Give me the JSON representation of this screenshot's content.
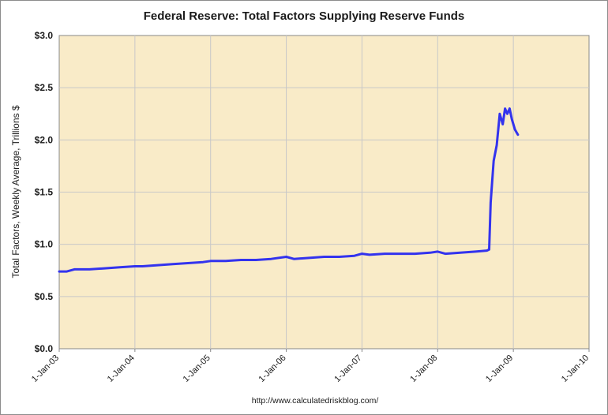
{
  "chart_data": {
    "type": "line",
    "title": "Federal Reserve: Total Factors Supplying Reserve Funds",
    "ylabel": "Total Factors, Weekly Average, Trillions $",
    "xlabel": "",
    "footer": "http://www.calculatedriskblog.com/",
    "ylim": [
      0,
      3.0
    ],
    "xlim": [
      2003.0,
      2010.0
    ],
    "grid": true,
    "legend": "none",
    "colors": {
      "plot_background": "#f9ebc8",
      "grid": "#c8c8c8",
      "line": "#3333ee"
    },
    "y_ticks": [
      {
        "value": 0.0,
        "label": "$0.0"
      },
      {
        "value": 0.5,
        "label": "$0.5"
      },
      {
        "value": 1.0,
        "label": "$1.0"
      },
      {
        "value": 1.5,
        "label": "$1.5"
      },
      {
        "value": 2.0,
        "label": "$2.0"
      },
      {
        "value": 2.5,
        "label": "$2.5"
      },
      {
        "value": 3.0,
        "label": "$3.0"
      }
    ],
    "x_ticks": [
      {
        "value": 2003,
        "label": "1-Jan-03"
      },
      {
        "value": 2004,
        "label": "1-Jan-04"
      },
      {
        "value": 2005,
        "label": "1-Jan-05"
      },
      {
        "value": 2006,
        "label": "1-Jan-06"
      },
      {
        "value": 2007,
        "label": "1-Jan-07"
      },
      {
        "value": 2008,
        "label": "1-Jan-08"
      },
      {
        "value": 2009,
        "label": "1-Jan-09"
      },
      {
        "value": 2010,
        "label": "1-Jan-10"
      }
    ],
    "series": [
      {
        "name": "Total Factors Supplying Reserve Funds",
        "x": [
          2003.0,
          2003.1,
          2003.2,
          2003.4,
          2003.6,
          2003.8,
          2004.0,
          2004.1,
          2004.3,
          2004.5,
          2004.7,
          2004.9,
          2005.0,
          2005.2,
          2005.4,
          2005.6,
          2005.8,
          2006.0,
          2006.1,
          2006.3,
          2006.5,
          2006.7,
          2006.9,
          2007.0,
          2007.1,
          2007.3,
          2007.5,
          2007.7,
          2007.9,
          2008.0,
          2008.1,
          2008.3,
          2008.5,
          2008.65,
          2008.68,
          2008.7,
          2008.74,
          2008.78,
          2008.82,
          2008.86,
          2008.89,
          2008.92,
          2008.95,
          2008.98,
          2009.02,
          2009.06
        ],
        "values": [
          0.74,
          0.74,
          0.76,
          0.76,
          0.77,
          0.78,
          0.79,
          0.79,
          0.8,
          0.81,
          0.82,
          0.83,
          0.84,
          0.84,
          0.85,
          0.85,
          0.86,
          0.88,
          0.86,
          0.87,
          0.88,
          0.88,
          0.89,
          0.91,
          0.9,
          0.91,
          0.91,
          0.91,
          0.92,
          0.93,
          0.91,
          0.92,
          0.93,
          0.94,
          0.95,
          1.4,
          1.8,
          1.95,
          2.25,
          2.15,
          2.3,
          2.25,
          2.3,
          2.2,
          2.1,
          2.05
        ]
      }
    ]
  }
}
